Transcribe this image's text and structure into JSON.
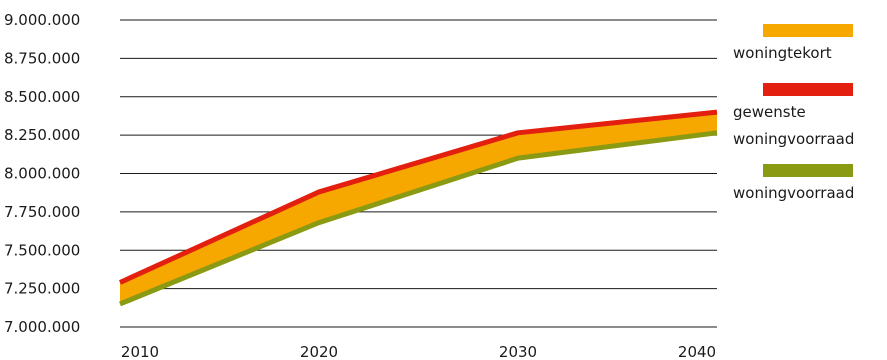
{
  "chart_data": {
    "type": "area",
    "x": [
      2010,
      2020,
      2030,
      2040
    ],
    "xticklabels": [
      "2010",
      "2020",
      "2030",
      "2040"
    ],
    "ylim": [
      7000000,
      9000000
    ],
    "yticks": [
      7000000,
      7250000,
      7500000,
      7750000,
      8000000,
      8250000,
      8500000,
      8750000,
      9000000
    ],
    "yticklabels": [
      "7.000.000",
      "7.250.000",
      "7.500.000",
      "7.750.000",
      "8.000.000",
      "8.250.000",
      "8.500.000",
      "8.750.000",
      "9.000.000"
    ],
    "grid": "horizontal",
    "legend_position": "right",
    "series": [
      {
        "name": "gewenste woningvoorraad",
        "color": "#e3200f",
        "values": [
          7290000,
          7880000,
          8265000,
          8400000
        ]
      },
      {
        "name": "woningvoorraad",
        "color": "#8a9a12",
        "values": [
          7150000,
          7680000,
          8100000,
          8265000
        ]
      }
    ],
    "band": {
      "name": "woningtekort",
      "color": "#f7a800",
      "between": [
        "woningvoorraad",
        "gewenste woningvoorraad"
      ]
    }
  },
  "legend": {
    "items": [
      {
        "key": "woningtekort",
        "color": "#f7a800",
        "lines": [
          "woningtekort"
        ]
      },
      {
        "key": "gewenste",
        "color": "#e3200f",
        "lines": [
          "gewenste",
          "woningvoorraad"
        ]
      },
      {
        "key": "woningvoorraad",
        "color": "#8a9a12",
        "lines": [
          "woningvoorraad"
        ]
      }
    ]
  }
}
